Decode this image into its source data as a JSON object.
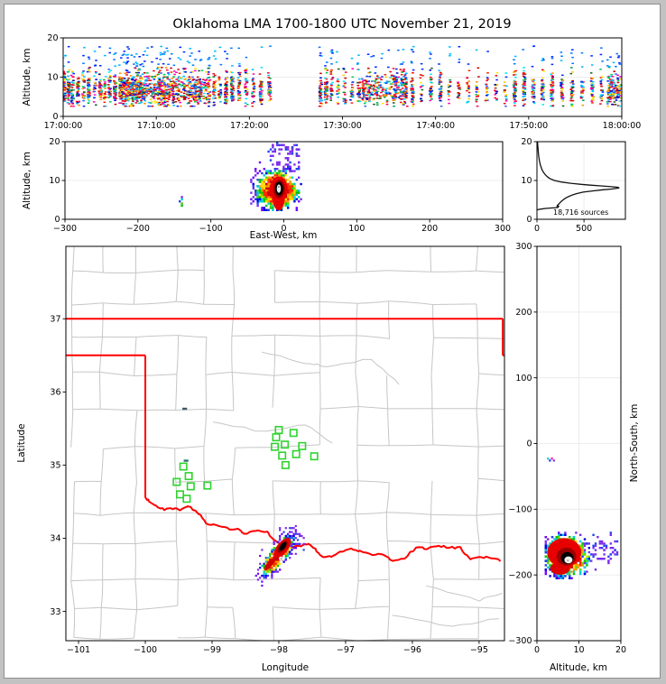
{
  "figure": {
    "background": "#ffffff",
    "frame_color": "#c2c2c2",
    "axis_color": "#000000",
    "grid_color": "#ececec"
  },
  "chart_data": [
    {
      "id": "time_height_scatter",
      "type": "scatter",
      "title": "Oklahoma LMA 1700-1800 UTC November 21, 2019",
      "ylabel": "Altitude, km",
      "ylim": [
        0,
        20
      ],
      "y_ticks": [
        "0",
        "10",
        "20"
      ],
      "y_tick_values": [
        0,
        10,
        20
      ],
      "x_ticks": [
        "17:00:00",
        "17:10:00",
        "17:20:00",
        "17:30:00",
        "17:40:00",
        "17:50:00",
        "18:00:00"
      ],
      "x_tick_seconds": [
        0,
        600,
        1200,
        1800,
        2400,
        3000,
        3600
      ],
      "xlim_seconds": [
        0,
        3600
      ],
      "grid": "horizontal at 10 km",
      "gap_seconds": [
        1360,
        1640
      ],
      "column_times_s": [
        8,
        35,
        60,
        95,
        130,
        165,
        205,
        240,
        268,
        300,
        335,
        370,
        400,
        430,
        460,
        490,
        515,
        545,
        575,
        605,
        635,
        665,
        695,
        730,
        765,
        800,
        835,
        870,
        905,
        940,
        975,
        1010,
        1050,
        1090,
        1135,
        1180,
        1225,
        1275,
        1330,
        1660,
        1695,
        1730,
        1770,
        1815,
        1860,
        1905,
        1950,
        1995,
        2040,
        2090,
        2140,
        2195,
        2250,
        2310,
        2370,
        2430,
        2490,
        2550,
        2610,
        2670,
        2730,
        2790,
        2850,
        2910,
        2970,
        3030,
        3090,
        3150,
        3215,
        3280,
        3345,
        3410,
        3470,
        3530,
        3580
      ],
      "alt_core_km": [
        3,
        12
      ],
      "alt_outlier_max_km": 19.5,
      "palette": [
        "#e80013",
        "#c40000",
        "#ff1e00",
        "#ff0040",
        "#ff8c00",
        "#ffc800",
        "#ffe400",
        "#009e3c",
        "#00c853",
        "#1b5e20",
        "#ff00b0",
        "#0026ff",
        "#0000c8",
        "#2962ff",
        "#00b8ff",
        "#00e5ff"
      ]
    },
    {
      "id": "east_west_cross_section",
      "type": "density",
      "xlabel": "East-West, km",
      "ylabel": "Altitude, km",
      "xlim": [
        -300,
        300
      ],
      "ylim": [
        0,
        20
      ],
      "x_ticks": [
        "−300",
        "−200",
        "−100",
        "0",
        "100",
        "200",
        "300"
      ],
      "x_tick_values": [
        -300,
        -200,
        -100,
        0,
        100,
        200,
        300
      ],
      "y_ticks": [
        "0",
        "10",
        "20"
      ],
      "y_tick_values": [
        0,
        10,
        20
      ],
      "main_cluster": {
        "x_range_km": [
          -46,
          23
        ],
        "alt_range_km": [
          2.5,
          16
        ],
        "core_x_km": -7,
        "core_alt_km": 7.8,
        "core_colors": [
          "red",
          "black",
          "white"
        ]
      },
      "outlier_cluster": {
        "x_km": -141,
        "alt_range_km": [
          3.3,
          5.6
        ]
      }
    },
    {
      "id": "source_altitude_histogram",
      "type": "line",
      "annotation": "18,716 sources",
      "total_sources": 18716,
      "x_ticks": [
        "0",
        "500"
      ],
      "x_tick_values": [
        0,
        500
      ],
      "xlim": [
        0,
        940
      ],
      "y_ticks": [
        "0",
        "10",
        "20"
      ],
      "y_tick_values": [
        0,
        10,
        20
      ],
      "ylim": [
        0,
        20
      ],
      "profile_alt_km": [
        20,
        19,
        18,
        17,
        16,
        15,
        14,
        13,
        12.5,
        12,
        11.5,
        11,
        10.5,
        10,
        9.6,
        9.3,
        9.0,
        8.8,
        8.6,
        8.4,
        8.25,
        8.1,
        8.0,
        7.8,
        7.6,
        7.3,
        7.0,
        6.6,
        6.2,
        5.8,
        5.4,
        5.0,
        4.6,
        4.2,
        3.9,
        3.7,
        3.5,
        3.35,
        3.2,
        3.1,
        3.0,
        2.9,
        2.8,
        2.6,
        2.45
      ],
      "profile_counts": [
        6,
        9,
        12,
        15,
        20,
        27,
        36,
        50,
        60,
        72,
        88,
        108,
        135,
        185,
        260,
        350,
        470,
        570,
        680,
        790,
        860,
        872,
        855,
        790,
        700,
        590,
        490,
        420,
        370,
        330,
        300,
        278,
        258,
        242,
        232,
        222,
        215,
        232,
        212,
        225,
        205,
        150,
        90,
        35,
        4
      ]
    },
    {
      "id": "plan_view_map",
      "type": "map-scatter",
      "xlabel": "Longitude",
      "ylabel": "Latitude",
      "xlim": [
        -101.19,
        -94.62
      ],
      "ylim": [
        32.6,
        37.99
      ],
      "x_ticks": [
        "−101",
        "−100",
        "−99",
        "−98",
        "−97",
        "−96",
        "−95"
      ],
      "x_tick_values": [
        -101,
        -100,
        -99,
        -98,
        -97,
        -96,
        -95
      ],
      "y_ticks": [
        "33",
        "34",
        "35",
        "36",
        "37"
      ],
      "y_tick_values": [
        33,
        34,
        35,
        36,
        37
      ],
      "county_color": "#c6c6c6",
      "station_color": "#2ed32e",
      "stations_lon_lat": [
        [
          -98.0,
          35.48
        ],
        [
          -97.78,
          35.44
        ],
        [
          -98.04,
          35.38
        ],
        [
          -97.91,
          35.28
        ],
        [
          -98.06,
          35.25
        ],
        [
          -97.65,
          35.26
        ],
        [
          -97.95,
          35.13
        ],
        [
          -97.74,
          35.15
        ],
        [
          -97.47,
          35.12
        ],
        [
          -97.9,
          35.0
        ],
        [
          -99.43,
          34.98
        ],
        [
          -99.35,
          34.85
        ],
        [
          -99.53,
          34.77
        ],
        [
          -99.32,
          34.71
        ],
        [
          -99.07,
          34.72
        ],
        [
          -99.48,
          34.6
        ],
        [
          -99.38,
          34.54
        ]
      ],
      "small_flashes": [
        {
          "lon": -99.39,
          "lat": 35.06,
          "color": "#2e6f73"
        },
        {
          "lon": -99.41,
          "lat": 35.77,
          "color": "#3d5a66"
        }
      ],
      "storm_cluster": {
        "center_lon_lat": [
          -98.02,
          33.76
        ],
        "lon_range": [
          -98.42,
          -97.7
        ],
        "lat_range": [
          33.48,
          34.12
        ],
        "core_lon_lat": [
          -97.95,
          33.83
        ],
        "white_spot_lon_lat": [
          -97.97,
          33.67
        ],
        "orientation": "SW-NE"
      },
      "state_border": {
        "color": "#ff0000",
        "kansas_line_lat": 37.0,
        "panhandle_lat": 36.5,
        "panhandle_east_lon": -100.0,
        "ne_corner_lon": -94.645,
        "red_river_lon_lat": [
          [
            -100,
            34.563
          ],
          [
            -99.95,
            34.51
          ],
          [
            -99.84,
            34.44
          ],
          [
            -99.71,
            34.39
          ],
          [
            -99.58,
            34.41
          ],
          [
            -99.475,
            34.38
          ],
          [
            -99.36,
            34.44
          ],
          [
            -99.21,
            34.34
          ],
          [
            -99.09,
            34.21
          ],
          [
            -98.94,
            34.17
          ],
          [
            -98.77,
            34.13
          ],
          [
            -98.61,
            34.12
          ],
          [
            -98.48,
            34.06
          ],
          [
            -98.35,
            34.11
          ],
          [
            -98.17,
            34.08
          ],
          [
            -98.09,
            33.99
          ],
          [
            -97.95,
            33.9
          ],
          [
            -97.84,
            33.88
          ],
          [
            -97.67,
            33.9
          ],
          [
            -97.55,
            33.92
          ],
          [
            -97.43,
            33.82
          ],
          [
            -97.31,
            33.74
          ],
          [
            -97.18,
            33.76
          ],
          [
            -97.08,
            33.81
          ],
          [
            -96.92,
            33.85
          ],
          [
            -96.78,
            33.82
          ],
          [
            -96.6,
            33.78
          ],
          [
            -96.43,
            33.77
          ],
          [
            -96.3,
            33.7
          ],
          [
            -96.12,
            33.73
          ],
          [
            -95.94,
            33.87
          ],
          [
            -95.77,
            33.86
          ],
          [
            -95.6,
            33.9
          ],
          [
            -95.45,
            33.87
          ],
          [
            -95.29,
            33.87
          ],
          [
            -95.14,
            33.72
          ],
          [
            -94.97,
            33.74
          ],
          [
            -94.82,
            33.74
          ],
          [
            -94.62,
            33.68
          ]
        ]
      }
    },
    {
      "id": "north_south_cross_section",
      "type": "density",
      "xlabel": "Altitude, km",
      "ylabel": "North-South, km",
      "xlim": [
        0,
        20
      ],
      "ylim": [
        -300,
        300
      ],
      "x_ticks": [
        "0",
        "10",
        "20"
      ],
      "x_tick_values": [
        0,
        10,
        20
      ],
      "y_ticks": [
        "300",
        "200",
        "100",
        "0",
        "−100",
        "−200",
        "−300"
      ],
      "y_tick_values": [
        300,
        200,
        100,
        0,
        -100,
        -200,
        -300
      ],
      "main_cluster": {
        "ns_range_km": [
          -206,
          -137
        ],
        "alt_range_km": [
          2,
          14.5
        ],
        "core_alt_km": 7.5,
        "core_ns_km": -176,
        "core_colors": [
          "red",
          "black",
          "white"
        ]
      },
      "outlier_cluster": {
        "ns_km": -25,
        "alt_range_km": [
          2.5,
          4.2
        ]
      }
    }
  ],
  "density_palette": {
    "lowest": "#7d2bee",
    "low": "#2244ee",
    "mid_low": "#00cdd6",
    "mid": "#00c400",
    "mid_high": "#ffe000",
    "high": "#ff9800",
    "higher": "#ff2a00",
    "highest": "#cc0000",
    "core_dark": "#000000",
    "core_peak": "#f0f0f0"
  }
}
